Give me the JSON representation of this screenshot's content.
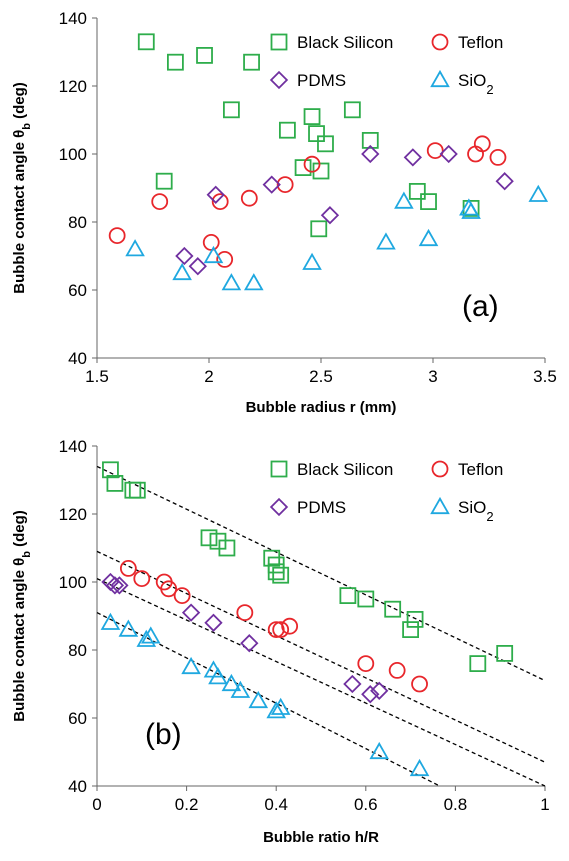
{
  "chart_data": [
    {
      "type": "scatter",
      "panel_label": "(a)",
      "xlabel": "Bubble radius r (mm)",
      "ylabel_main": "Bubble contact angle θ",
      "ylabel_sub": "b",
      "ylabel_unit": " (deg)",
      "xlim": [
        1.5,
        3.5
      ],
      "ylim": [
        40,
        140
      ],
      "x_ticks": [
        1.5,
        2,
        2.5,
        3,
        3.5
      ],
      "x_tick_labels": [
        "1.5",
        "2",
        "2.5",
        "3",
        "3.5"
      ],
      "y_ticks": [
        40,
        60,
        80,
        100,
        120,
        140
      ],
      "y_tick_labels": [
        "40",
        "60",
        "80",
        "100",
        "120",
        "140"
      ],
      "grid": false,
      "legend_placement": "top",
      "series": [
        {
          "name": "Black Silicon",
          "marker": "square",
          "color": "#2EAD4B",
          "points": [
            [
              1.72,
              133
            ],
            [
              1.85,
              127
            ],
            [
              1.98,
              129
            ],
            [
              2.19,
              127
            ],
            [
              2.1,
              113
            ],
            [
              1.8,
              92
            ],
            [
              2.35,
              107
            ],
            [
              2.46,
              111
            ],
            [
              2.48,
              106
            ],
            [
              2.52,
              103
            ],
            [
              2.42,
              96
            ],
            [
              2.5,
              95
            ],
            [
              2.64,
              113
            ],
            [
              2.72,
              104
            ],
            [
              2.49,
              78
            ],
            [
              2.93,
              89
            ],
            [
              2.98,
              86
            ],
            [
              3.17,
              84
            ]
          ]
        },
        {
          "name": "Teflon",
          "marker": "circle",
          "color": "#E8262B",
          "points": [
            [
              1.59,
              76
            ],
            [
              1.78,
              86
            ],
            [
              2.01,
              74
            ],
            [
              2.05,
              86
            ],
            [
              2.07,
              69
            ],
            [
              2.18,
              87
            ],
            [
              2.34,
              91
            ],
            [
              2.46,
              97
            ],
            [
              3.01,
              101
            ],
            [
              3.19,
              100
            ],
            [
              3.22,
              103
            ],
            [
              3.29,
              99
            ]
          ]
        },
        {
          "name": "PDMS",
          "marker": "diamond",
          "color": "#7030A0",
          "points": [
            [
              1.89,
              70
            ],
            [
              1.95,
              67
            ],
            [
              2.03,
              88
            ],
            [
              2.28,
              91
            ],
            [
              2.54,
              82
            ],
            [
              2.72,
              100
            ],
            [
              2.91,
              99
            ],
            [
              3.07,
              100
            ],
            [
              3.32,
              92
            ]
          ]
        },
        {
          "name": "SiO",
          "name_sub": "2",
          "marker": "triangle",
          "color": "#1FA8E0",
          "points": [
            [
              1.67,
              72
            ],
            [
              1.88,
              65
            ],
            [
              2.02,
              70
            ],
            [
              2.1,
              62
            ],
            [
              2.2,
              62
            ],
            [
              2.46,
              68
            ],
            [
              2.79,
              74
            ],
            [
              2.87,
              86
            ],
            [
              2.98,
              75
            ],
            [
              3.16,
              84
            ],
            [
              3.17,
              83
            ],
            [
              3.47,
              88
            ]
          ]
        }
      ]
    },
    {
      "type": "scatter",
      "panel_label": "(b)",
      "xlabel": "Bubble ratio h/R",
      "ylabel_main": "Bubble contact angle θ",
      "ylabel_sub": "b",
      "ylabel_unit": " (deg)",
      "xlim": [
        0,
        1
      ],
      "ylim": [
        40,
        140
      ],
      "x_ticks": [
        0,
        0.2,
        0.4,
        0.6,
        0.8,
        1
      ],
      "x_tick_labels": [
        "0",
        "0.2",
        "0.4",
        "0.6",
        "0.8",
        "1"
      ],
      "y_ticks": [
        40,
        60,
        80,
        100,
        120,
        140
      ],
      "y_tick_labels": [
        "40",
        "60",
        "80",
        "100",
        "120",
        "140"
      ],
      "grid": false,
      "legend_placement": "top",
      "trend_lines": [
        {
          "x": [
            0,
            1
          ],
          "y": [
            134,
            71
          ]
        },
        {
          "x": [
            0,
            1
          ],
          "y": [
            109,
            47
          ]
        },
        {
          "x": [
            0,
            1
          ],
          "y": [
            101,
            40
          ]
        },
        {
          "x": [
            0,
            0.765
          ],
          "y": [
            91,
            40
          ]
        }
      ],
      "series": [
        {
          "name": "Black Silicon",
          "marker": "square",
          "color": "#2EAD4B",
          "points": [
            [
              0.03,
              133
            ],
            [
              0.04,
              129
            ],
            [
              0.08,
              127
            ],
            [
              0.09,
              127
            ],
            [
              0.25,
              113
            ],
            [
              0.27,
              112
            ],
            [
              0.29,
              110
            ],
            [
              0.39,
              107
            ],
            [
              0.4,
              105
            ],
            [
              0.4,
              103
            ],
            [
              0.41,
              102
            ],
            [
              0.56,
              96
            ],
            [
              0.6,
              95
            ],
            [
              0.66,
              92
            ],
            [
              0.71,
              89
            ],
            [
              0.7,
              86
            ],
            [
              0.85,
              76
            ],
            [
              0.91,
              79
            ]
          ]
        },
        {
          "name": "Teflon",
          "marker": "circle",
          "color": "#E8262B",
          "points": [
            [
              0.07,
              104
            ],
            [
              0.1,
              101
            ],
            [
              0.15,
              100
            ],
            [
              0.16,
              98
            ],
            [
              0.19,
              96
            ],
            [
              0.33,
              91
            ],
            [
              0.4,
              86
            ],
            [
              0.41,
              86
            ],
            [
              0.43,
              87
            ],
            [
              0.6,
              76
            ],
            [
              0.67,
              74
            ],
            [
              0.72,
              70
            ]
          ]
        },
        {
          "name": "PDMS",
          "marker": "diamond",
          "color": "#7030A0",
          "points": [
            [
              0.03,
              100
            ],
            [
              0.04,
              99
            ],
            [
              0.05,
              99
            ],
            [
              0.21,
              91
            ],
            [
              0.26,
              88
            ],
            [
              0.34,
              82
            ],
            [
              0.57,
              70
            ],
            [
              0.61,
              67
            ],
            [
              0.63,
              68
            ]
          ]
        },
        {
          "name": "SiO",
          "name_sub": "2",
          "marker": "triangle",
          "color": "#1FA8E0",
          "points": [
            [
              0.03,
              88
            ],
            [
              0.07,
              86
            ],
            [
              0.11,
              83
            ],
            [
              0.12,
              84
            ],
            [
              0.21,
              75
            ],
            [
              0.26,
              74
            ],
            [
              0.27,
              72
            ],
            [
              0.3,
              70
            ],
            [
              0.32,
              68
            ],
            [
              0.36,
              65
            ],
            [
              0.4,
              62
            ],
            [
              0.41,
              63
            ],
            [
              0.63,
              50
            ],
            [
              0.72,
              45
            ]
          ]
        }
      ]
    }
  ]
}
